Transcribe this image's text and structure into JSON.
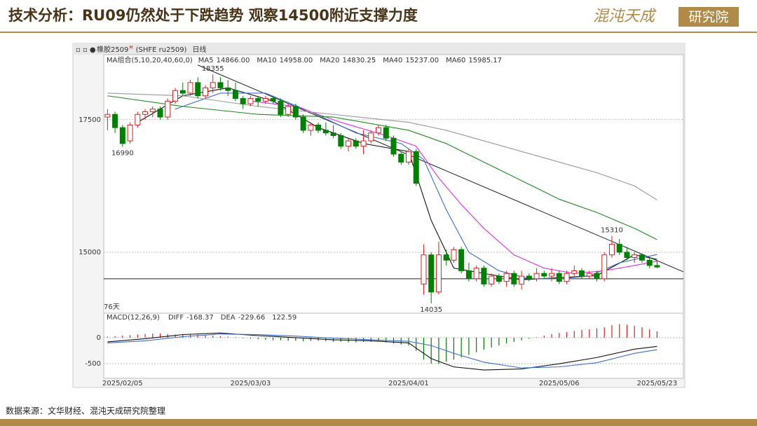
{
  "header": {
    "title": "技术分析：RU09仍然处于下跌趋势 观察14500附近支撑力度",
    "logo_main": "混沌天成",
    "logo_box": "研究院"
  },
  "footer": {
    "source": "数据来源：文华财经、混沌天成研究院整理"
  },
  "chart_data": {
    "type": "candlestick",
    "instrument": "橡胶2509",
    "instrument_tag": "M",
    "exchange_code": "(SHFE ru2509)",
    "period": "日线",
    "ma_group_label": "MA组合(5,10,20,40,60,0)",
    "days_label": "76天",
    "up_color": "#e02020",
    "down_color": "#008000",
    "xlim": [
      -0.5,
      76.5
    ],
    "ylim": [
      13850,
      18700
    ],
    "yticks": [
      15000,
      17500
    ],
    "grid": true,
    "categories": [
      null,
      null,
      "2025/02/05",
      null,
      null,
      null,
      null,
      null,
      null,
      null,
      null,
      null,
      null,
      null,
      null,
      null,
      null,
      null,
      null,
      "2025/03/03",
      null,
      null,
      null,
      null,
      null,
      null,
      null,
      null,
      null,
      null,
      null,
      null,
      null,
      null,
      null,
      null,
      null,
      null,
      null,
      null,
      "2025/04/01",
      null,
      null,
      null,
      null,
      null,
      null,
      null,
      null,
      null,
      null,
      null,
      null,
      null,
      null,
      null,
      null,
      null,
      null,
      null,
      "2025/05/06",
      null,
      null,
      null,
      null,
      null,
      null,
      null,
      null,
      null,
      null,
      null,
      null,
      "2025/05/23"
    ],
    "candles": [
      [
        17550,
        17700,
        17300,
        17600
      ],
      [
        17600,
        17650,
        17250,
        17350
      ],
      [
        17350,
        17400,
        16990,
        17050
      ],
      [
        17100,
        17450,
        17050,
        17400
      ],
      [
        17400,
        17650,
        17350,
        17600
      ],
      [
        17600,
        17700,
        17500,
        17650
      ],
      [
        17650,
        17750,
        17550,
        17700
      ],
      [
        17700,
        17750,
        17500,
        17550
      ],
      [
        17550,
        17900,
        17500,
        17850
      ],
      [
        17850,
        18100,
        17800,
        18050
      ],
      [
        18050,
        18200,
        17950,
        18000
      ],
      [
        18000,
        18250,
        17950,
        18200
      ],
      [
        18200,
        18300,
        17900,
        17950
      ],
      [
        17950,
        18150,
        17900,
        18100
      ],
      [
        18100,
        18355,
        18000,
        18200
      ],
      [
        18200,
        18300,
        18050,
        18100
      ],
      [
        18100,
        18250,
        17950,
        18050
      ],
      [
        18050,
        18200,
        17850,
        17900
      ],
      [
        17900,
        17950,
        17700,
        17800
      ],
      [
        17800,
        17950,
        17750,
        17900
      ],
      [
        17900,
        17950,
        17750,
        17850
      ],
      [
        17850,
        17950,
        17800,
        17900
      ],
      [
        17900,
        17950,
        17800,
        17850
      ],
      [
        17850,
        17900,
        17550,
        17600
      ],
      [
        17600,
        17800,
        17550,
        17750
      ],
      [
        17750,
        17800,
        17500,
        17550
      ],
      [
        17550,
        17600,
        17250,
        17300
      ],
      [
        17300,
        17450,
        17200,
        17400
      ],
      [
        17400,
        17450,
        17250,
        17300
      ],
      [
        17300,
        17450,
        17200,
        17250
      ],
      [
        17250,
        17400,
        17150,
        17200
      ],
      [
        17200,
        17250,
        16950,
        17000
      ],
      [
        17000,
        17150,
        16900,
        17100
      ],
      [
        17100,
        17150,
        16950,
        17000
      ],
      [
        17000,
        17300,
        16850,
        17100
      ],
      [
        17100,
        17300,
        17050,
        17250
      ],
      [
        17250,
        17400,
        17200,
        17350
      ],
      [
        17350,
        17400,
        17100,
        17150
      ],
      [
        17150,
        17200,
        16800,
        16850
      ],
      [
        16850,
        16900,
        16650,
        16700
      ],
      [
        16700,
        16950,
        16650,
        16900
      ],
      [
        16900,
        16950,
        16250,
        16300
      ],
      [
        14400,
        15150,
        14200,
        14950
      ],
      [
        14950,
        15000,
        14035,
        14250
      ],
      [
        14250,
        15200,
        14200,
        14950
      ],
      [
        14950,
        15050,
        14750,
        14850
      ],
      [
        14850,
        15100,
        14800,
        15050
      ],
      [
        15050,
        15100,
        14600,
        14650
      ],
      [
        14650,
        14800,
        14450,
        14500
      ],
      [
        14500,
        14750,
        14450,
        14700
      ],
      [
        14700,
        14750,
        14350,
        14400
      ],
      [
        14400,
        14600,
        14350,
        14550
      ],
      [
        14550,
        14600,
        14400,
        14450
      ],
      [
        14450,
        14650,
        14350,
        14600
      ],
      [
        14600,
        14650,
        14350,
        14400
      ],
      [
        14400,
        14650,
        14300,
        14550
      ],
      [
        14550,
        14600,
        14450,
        14500
      ],
      [
        14500,
        14700,
        14450,
        14600
      ],
      [
        14600,
        14650,
        14500,
        14550
      ],
      [
        14550,
        14700,
        14450,
        14600
      ],
      [
        14600,
        14650,
        14400,
        14450
      ],
      [
        14450,
        14650,
        14400,
        14600
      ],
      [
        14600,
        14750,
        14550,
        14650
      ],
      [
        14650,
        14700,
        14500,
        14550
      ],
      [
        14550,
        14650,
        14500,
        14600
      ],
      [
        14600,
        14650,
        14450,
        14500
      ],
      [
        14500,
        15000,
        14450,
        14950
      ],
      [
        14950,
        15310,
        14900,
        15150
      ],
      [
        15150,
        15250,
        14950,
        15000
      ],
      [
        15000,
        15100,
        14850,
        14900
      ],
      [
        14900,
        15000,
        14800,
        14950
      ],
      [
        14950,
        14980,
        14800,
        14850
      ],
      [
        14850,
        14900,
        14700,
        14750
      ],
      [
        14750,
        14850,
        14700,
        14720
      ]
    ],
    "annotations": [
      {
        "index": 14,
        "value": 18355,
        "side": "high"
      },
      {
        "index": 2,
        "value": 16990,
        "side": "low"
      },
      {
        "index": 43,
        "value": 14035,
        "side": "low"
      },
      {
        "index": 67,
        "value": 15310,
        "side": "high"
      }
    ],
    "trendline": {
      "x": [
        12,
        76.5
      ],
      "values": [
        18530,
        14630
      ],
      "color": "#222"
    },
    "support_line": {
      "value": 14500,
      "color": "#222"
    },
    "series": [
      {
        "name": "MA5",
        "latest_label": "14866.00",
        "color": "#111111",
        "x": [
          4,
          10,
          16,
          22,
          28,
          34,
          40,
          43,
          46,
          50,
          55,
          60,
          65,
          70,
          73
        ],
        "values": [
          17450,
          17950,
          18100,
          17850,
          17350,
          17050,
          16900,
          15600,
          14700,
          14600,
          14480,
          14520,
          14560,
          14950,
          14866
        ]
      },
      {
        "name": "MA10",
        "latest_label": "14958.00",
        "color": "#3a6fd0",
        "x": [
          9,
          15,
          21,
          27,
          33,
          39,
          42,
          45,
          48,
          52,
          56,
          60,
          64,
          68,
          73
        ],
        "values": [
          17700,
          18000,
          18000,
          17650,
          17250,
          17050,
          16750,
          15800,
          15000,
          14650,
          14500,
          14500,
          14550,
          14800,
          14958
        ]
      },
      {
        "name": "MA20",
        "latest_label": "14830.25",
        "color": "#e030e0",
        "x": [
          19,
          25,
          31,
          37,
          41,
          44,
          47,
          50,
          54,
          58,
          62,
          66,
          70,
          73
        ],
        "values": [
          17850,
          17750,
          17450,
          17200,
          17000,
          16400,
          15900,
          15450,
          14950,
          14700,
          14600,
          14650,
          14750,
          14830
        ]
      },
      {
        "name": "MA40",
        "latest_label": "15237.00",
        "color": "#1e8c1e",
        "x": [
          0,
          10,
          20,
          30,
          40,
          45,
          50,
          55,
          60,
          65,
          70,
          73
        ],
        "values": [
          17950,
          17750,
          17600,
          17550,
          17300,
          17050,
          16700,
          16350,
          16000,
          15750,
          15450,
          15237
        ]
      },
      {
        "name": "MA60",
        "latest_label": "15985.17",
        "color": "#999999",
        "x": [
          0,
          10,
          20,
          30,
          40,
          45,
          50,
          55,
          60,
          65,
          70,
          73
        ],
        "values": [
          18000,
          17950,
          17750,
          17600,
          17450,
          17300,
          17100,
          16900,
          16700,
          16500,
          16250,
          15985
        ]
      }
    ],
    "macd": {
      "label": "MACD(12,26,9)",
      "ylim": [
        -780,
        470
      ],
      "yticks": [
        0,
        -500
      ],
      "histogram_latest": 122.59,
      "histogram": [
        20,
        30,
        40,
        50,
        60,
        70,
        80,
        80,
        70,
        60,
        60,
        70,
        60,
        50,
        40,
        30,
        20,
        10,
        -10,
        -20,
        -30,
        -40,
        -50,
        -50,
        -60,
        -60,
        -70,
        -60,
        -60,
        -70,
        -80,
        -80,
        -90,
        -90,
        -80,
        -80,
        -70,
        -90,
        -110,
        -130,
        -150,
        -250,
        -420,
        -500,
        -500,
        -460,
        -420,
        -380,
        -330,
        -280,
        -230,
        -190,
        -150,
        -110,
        -80,
        -50,
        -20,
        10,
        40,
        70,
        90,
        110,
        130,
        150,
        160,
        180,
        200,
        240,
        260,
        250,
        230,
        200,
        160,
        122.59
      ],
      "lines": [
        {
          "name": "DIFF",
          "latest_label": "-168.37",
          "color": "#111111",
          "x": [
            0,
            5,
            10,
            15,
            20,
            25,
            30,
            35,
            40,
            43,
            46,
            50,
            55,
            60,
            65,
            70,
            73
          ],
          "values": [
            -80,
            -20,
            60,
            90,
            40,
            0,
            -40,
            -60,
            -100,
            -400,
            -560,
            -620,
            -600,
            -500,
            -380,
            -220,
            -168
          ]
        },
        {
          "name": "DEA",
          "latest_label": "-229.66",
          "color": "#3a6fd0",
          "x": [
            0,
            5,
            10,
            15,
            20,
            25,
            30,
            35,
            40,
            43,
            46,
            50,
            55,
            60,
            65,
            70,
            73
          ],
          "values": [
            -100,
            -60,
            20,
            70,
            60,
            30,
            -10,
            -40,
            -70,
            -150,
            -300,
            -470,
            -580,
            -560,
            -480,
            -300,
            -230
          ]
        }
      ]
    }
  }
}
